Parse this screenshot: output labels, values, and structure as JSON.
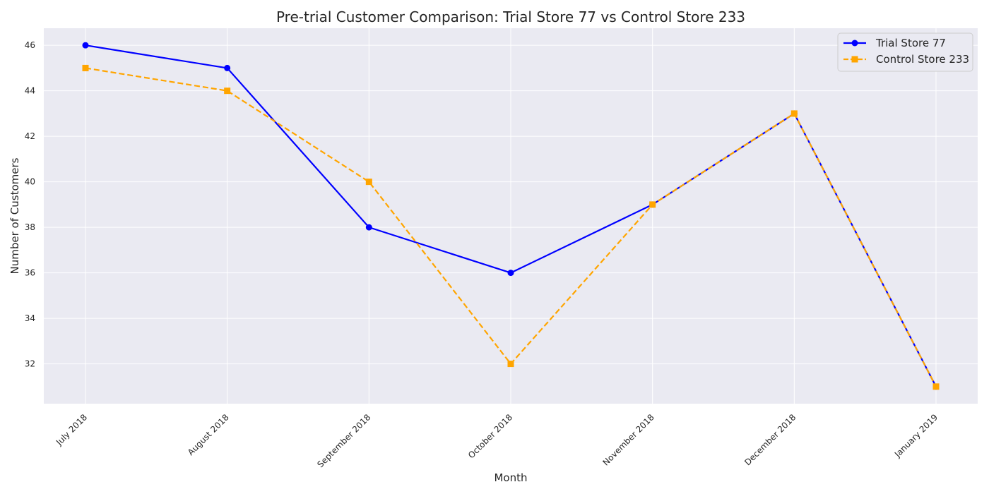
{
  "chart_data": {
    "type": "line",
    "title": "Pre-trial Customer Comparison: Trial Store 77 vs Control Store 233",
    "xlabel": "Month",
    "ylabel": "Number of Customers",
    "categories": [
      "July 2018",
      "August 2018",
      "September 2018",
      "October 2018",
      "November 2018",
      "December 2018",
      "January 2019"
    ],
    "yticks": [
      32,
      34,
      36,
      38,
      40,
      42,
      44,
      46
    ],
    "ylim": [
      30.25,
      46.75
    ],
    "grid": true,
    "legend_position": "top-right",
    "series": [
      {
        "name": "Trial Store 77",
        "values": [
          46,
          45,
          38,
          36,
          39,
          43,
          31
        ],
        "color": "#0000ff",
        "line_style": "solid",
        "marker": "circle"
      },
      {
        "name": "Control Store 233",
        "values": [
          45,
          44,
          40,
          32,
          39,
          43,
          31
        ],
        "color": "#ffa500",
        "line_style": "dashed",
        "marker": "square"
      }
    ]
  }
}
